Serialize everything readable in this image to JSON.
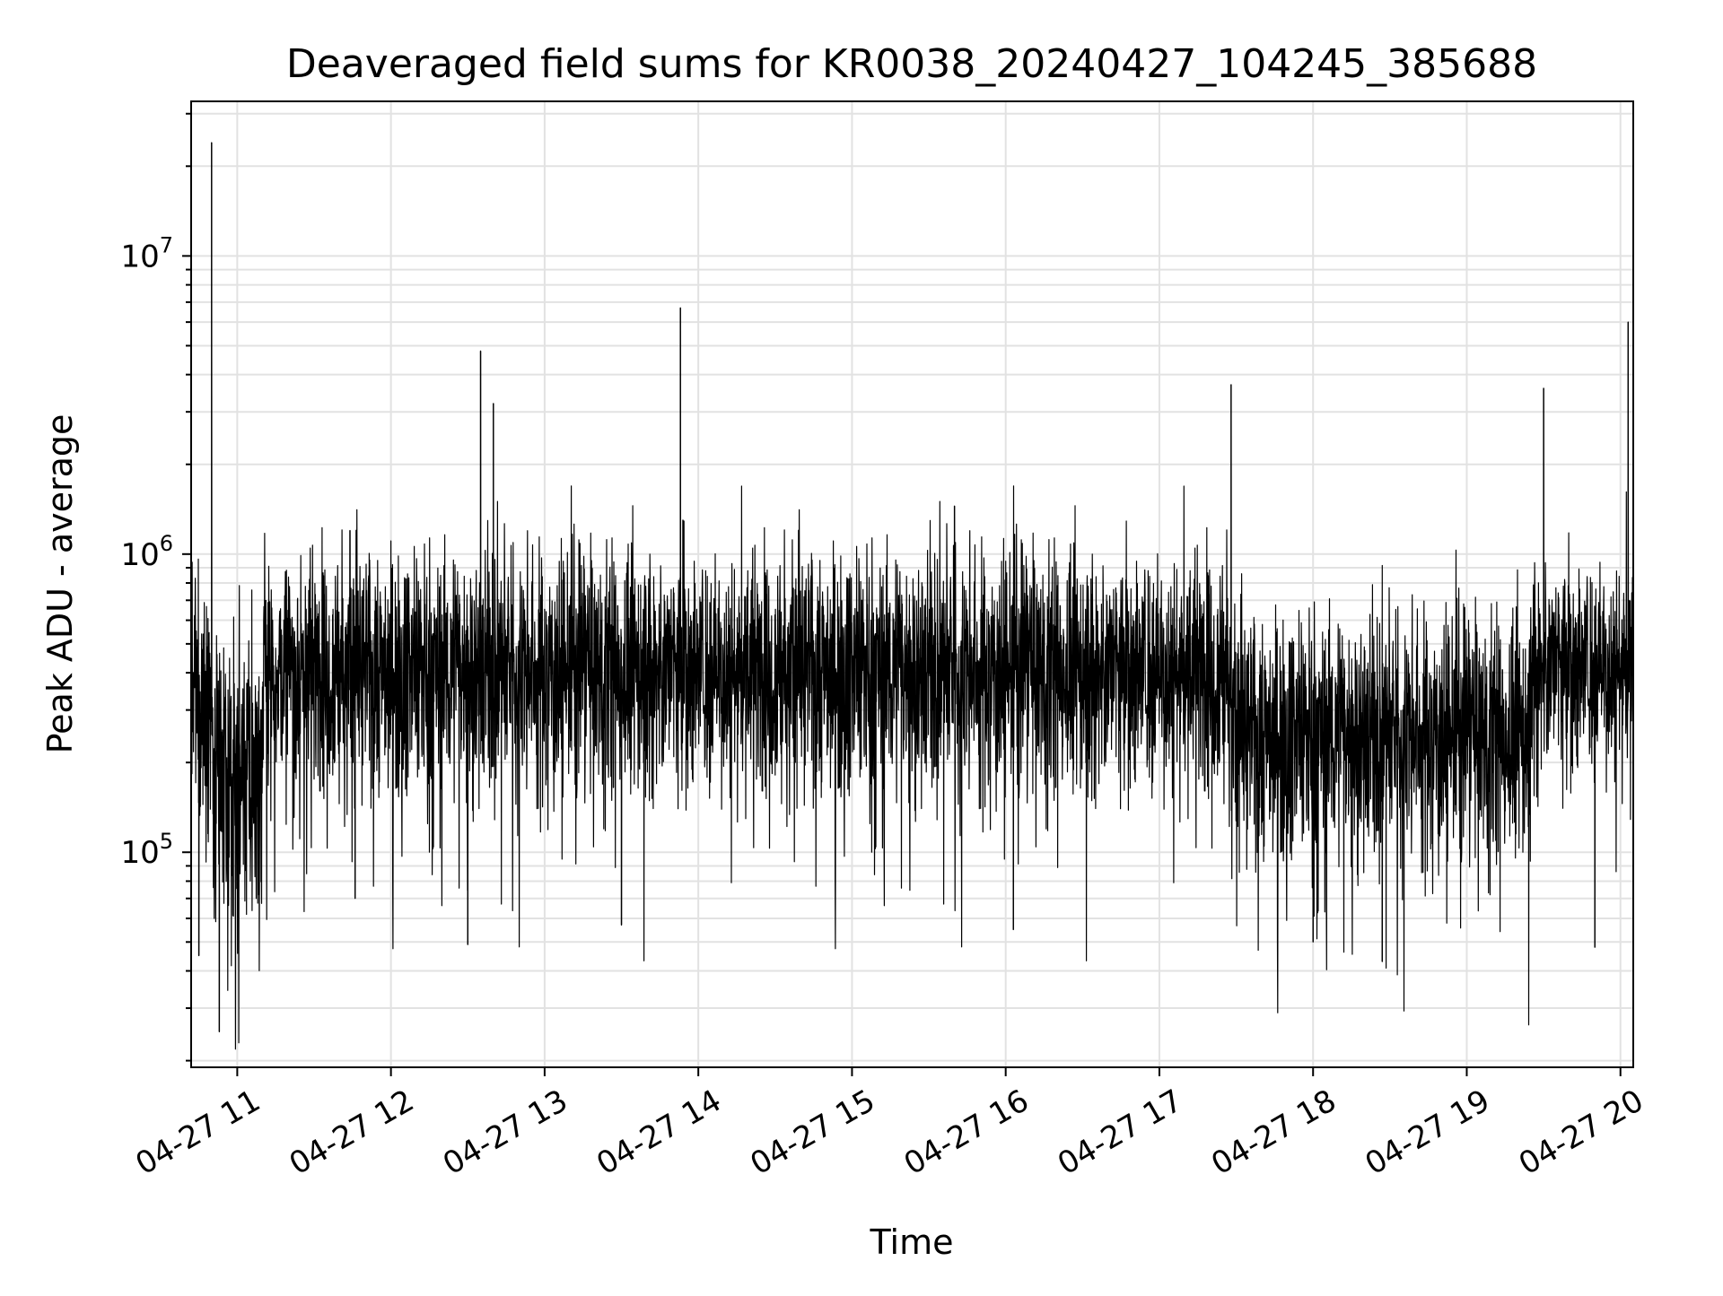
{
  "chart_data": {
    "type": "line",
    "title": "Deaveraged field sums for KR0038_20240427_104245_385688",
    "xlabel": "Time",
    "ylabel": "Peak ADU - average",
    "x_scale": "time",
    "y_scale": "log",
    "xlim": [
      "2024-04-27 10:42",
      "2024-04-27 20:05"
    ],
    "ylim": [
      19000,
      33000000
    ],
    "grid": true,
    "x_ticks": [
      "04-27 11",
      "04-27 12",
      "04-27 13",
      "04-27 14",
      "04-27 15",
      "04-27 16",
      "04-27 17",
      "04-27 18",
      "04-27 19",
      "04-27 20"
    ],
    "y_ticks": [
      {
        "base": "10",
        "exp": "5",
        "value": 100000
      },
      {
        "base": "10",
        "exp": "6",
        "value": 1000000
      },
      {
        "base": "10",
        "exp": "7",
        "value": 10000000
      }
    ],
    "line_color": "#000000",
    "segments": [
      {
        "start": "2024-04-27 10:42",
        "end": "2024-04-27 10:50",
        "level": 330000,
        "spread": 0.22
      },
      {
        "start": "2024-04-27 10:50",
        "end": "2024-04-27 11:10",
        "level": 170000,
        "spread": 0.25
      },
      {
        "start": "2024-04-27 11:10",
        "end": "2024-04-27 17:28",
        "level": 410000,
        "spread": 0.2
      },
      {
        "start": "2024-04-27 17:28",
        "end": "2024-04-27 19:25",
        "level": 250000,
        "spread": 0.2
      },
      {
        "start": "2024-04-27 19:25",
        "end": "2024-04-27 20:05",
        "level": 420000,
        "spread": 0.18
      }
    ],
    "spikes": [
      {
        "x": "2024-04-27 10:50",
        "y": 24000000
      },
      {
        "x": "2024-04-27 10:53",
        "y": 25000
      },
      {
        "x": "2024-04-27 10:45",
        "y": 45000
      },
      {
        "x": "2024-04-27 11:44",
        "y": 1200000
      },
      {
        "x": "2024-04-27 11:46",
        "y": 70000
      },
      {
        "x": "2024-04-27 12:35",
        "y": 4800000
      },
      {
        "x": "2024-04-27 12:40",
        "y": 3200000
      },
      {
        "x": "2024-04-27 12:30",
        "y": 49000
      },
      {
        "x": "2024-04-27 13:53",
        "y": 6700000
      },
      {
        "x": "2024-04-27 13:54",
        "y": 1300000
      },
      {
        "x": "2024-04-27 13:30",
        "y": 57000
      },
      {
        "x": "2024-04-27 15:40",
        "y": 1450000
      },
      {
        "x": "2024-04-27 16:03",
        "y": 55000
      },
      {
        "x": "2024-04-27 17:28",
        "y": 3700000
      },
      {
        "x": "2024-04-27 18:27",
        "y": 43000
      },
      {
        "x": "2024-04-27 18:00",
        "y": 50000
      },
      {
        "x": "2024-04-27 19:30",
        "y": 3600000
      },
      {
        "x": "2024-04-27 19:50",
        "y": 48000
      },
      {
        "x": "2024-04-27 20:03",
        "y": 6000000
      }
    ]
  }
}
